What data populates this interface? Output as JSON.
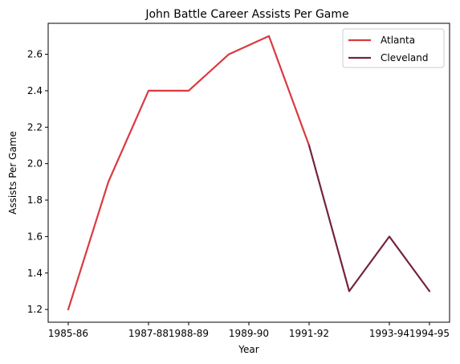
{
  "chart_data": {
    "type": "line",
    "title": "John Battle  Career Assists Per Game",
    "xlabel": "Year",
    "ylabel": "Assists Per Game",
    "x_ticks": [
      "1985-86",
      "1987-88",
      "1988-89",
      "1989-90",
      "1991-92",
      "1993-94",
      "1994-95"
    ],
    "x_tick_positions": [
      0,
      2,
      3,
      4.5,
      6,
      8,
      9
    ],
    "y_ticks": [
      "1.2",
      "1.4",
      "1.6",
      "1.8",
      "2.0",
      "2.2",
      "2.4",
      "2.6"
    ],
    "y_tick_values": [
      1.2,
      1.4,
      1.6,
      1.8,
      2.0,
      2.2,
      2.4,
      2.6
    ],
    "xlim": [
      -0.5,
      9.5
    ],
    "ylim": [
      1.13,
      2.77
    ],
    "grid": false,
    "legend_position": "top-right",
    "series": [
      {
        "name": "Atlanta",
        "color": "#d93a3f",
        "x": [
          0,
          1,
          2,
          3,
          4,
          5,
          6
        ],
        "y": [
          1.2,
          1.9,
          2.4,
          2.4,
          2.6,
          2.7,
          2.1
        ]
      },
      {
        "name": "Cleveland",
        "color": "#72243d",
        "x": [
          6,
          7,
          8,
          9
        ],
        "y": [
          2.1,
          1.3,
          1.6,
          1.3
        ]
      }
    ]
  }
}
